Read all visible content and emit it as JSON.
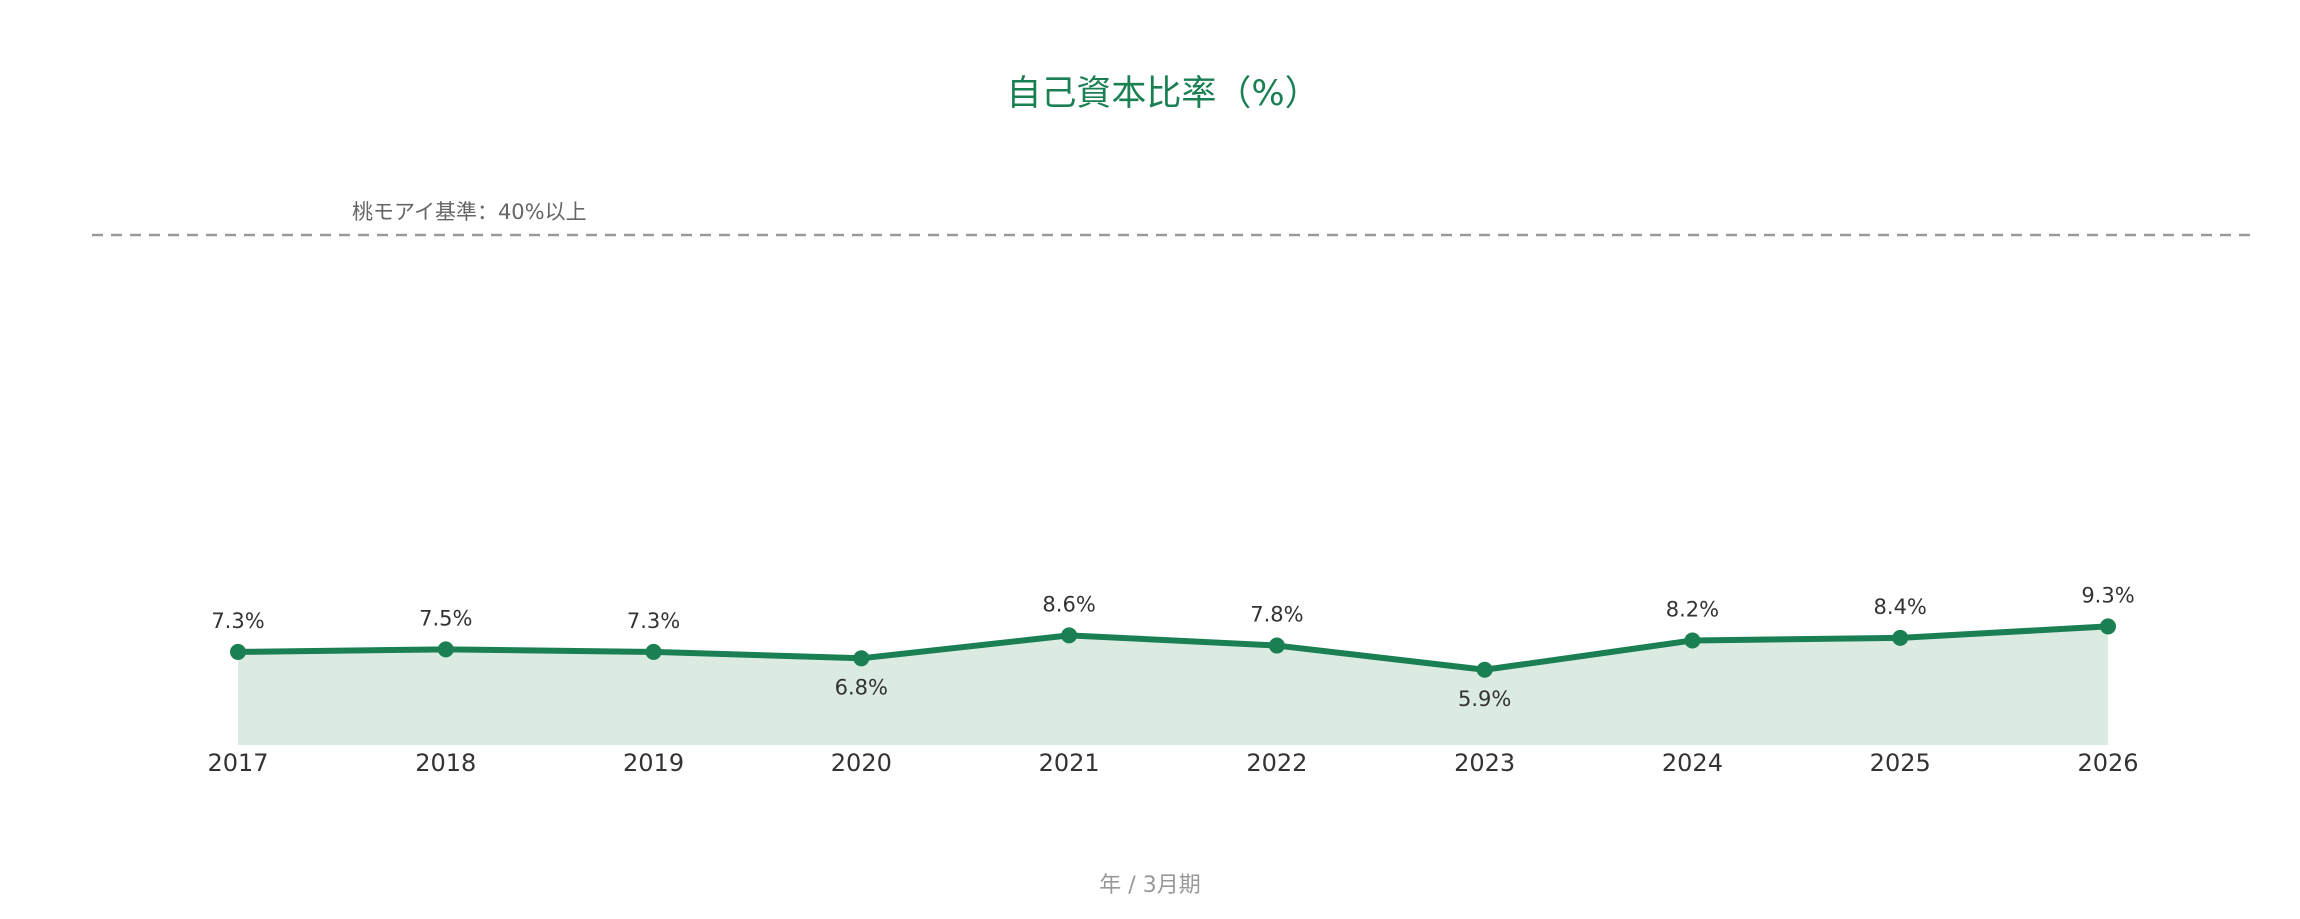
{
  "chart_data": {
    "type": "line",
    "title": "自己資本比率（%）",
    "x_label": "年 / 3月期",
    "categories": [
      "2017",
      "2018",
      "2019",
      "2020",
      "2021",
      "2022",
      "2023",
      "2024",
      "2025",
      "2026"
    ],
    "series": [
      {
        "color": "#1a7f52",
        "values": [
          7.3,
          7.5,
          7.3,
          6.8,
          8.6,
          7.8,
          5.9,
          8.2,
          8.4,
          9.3
        ],
        "value_labels": [
          "7.3%",
          "7.5%",
          "7.3%",
          "6.8%",
          "8.6%",
          "7.8%",
          "5.9%",
          "8.2%",
          "8.4%",
          "9.3%"
        ]
      }
    ],
    "area_color": "#dcebe2",
    "ylim": [
      0,
      40
    ],
    "reference_line": {
      "value": 40,
      "label": "桃モアイ基準：40%以上"
    }
  }
}
